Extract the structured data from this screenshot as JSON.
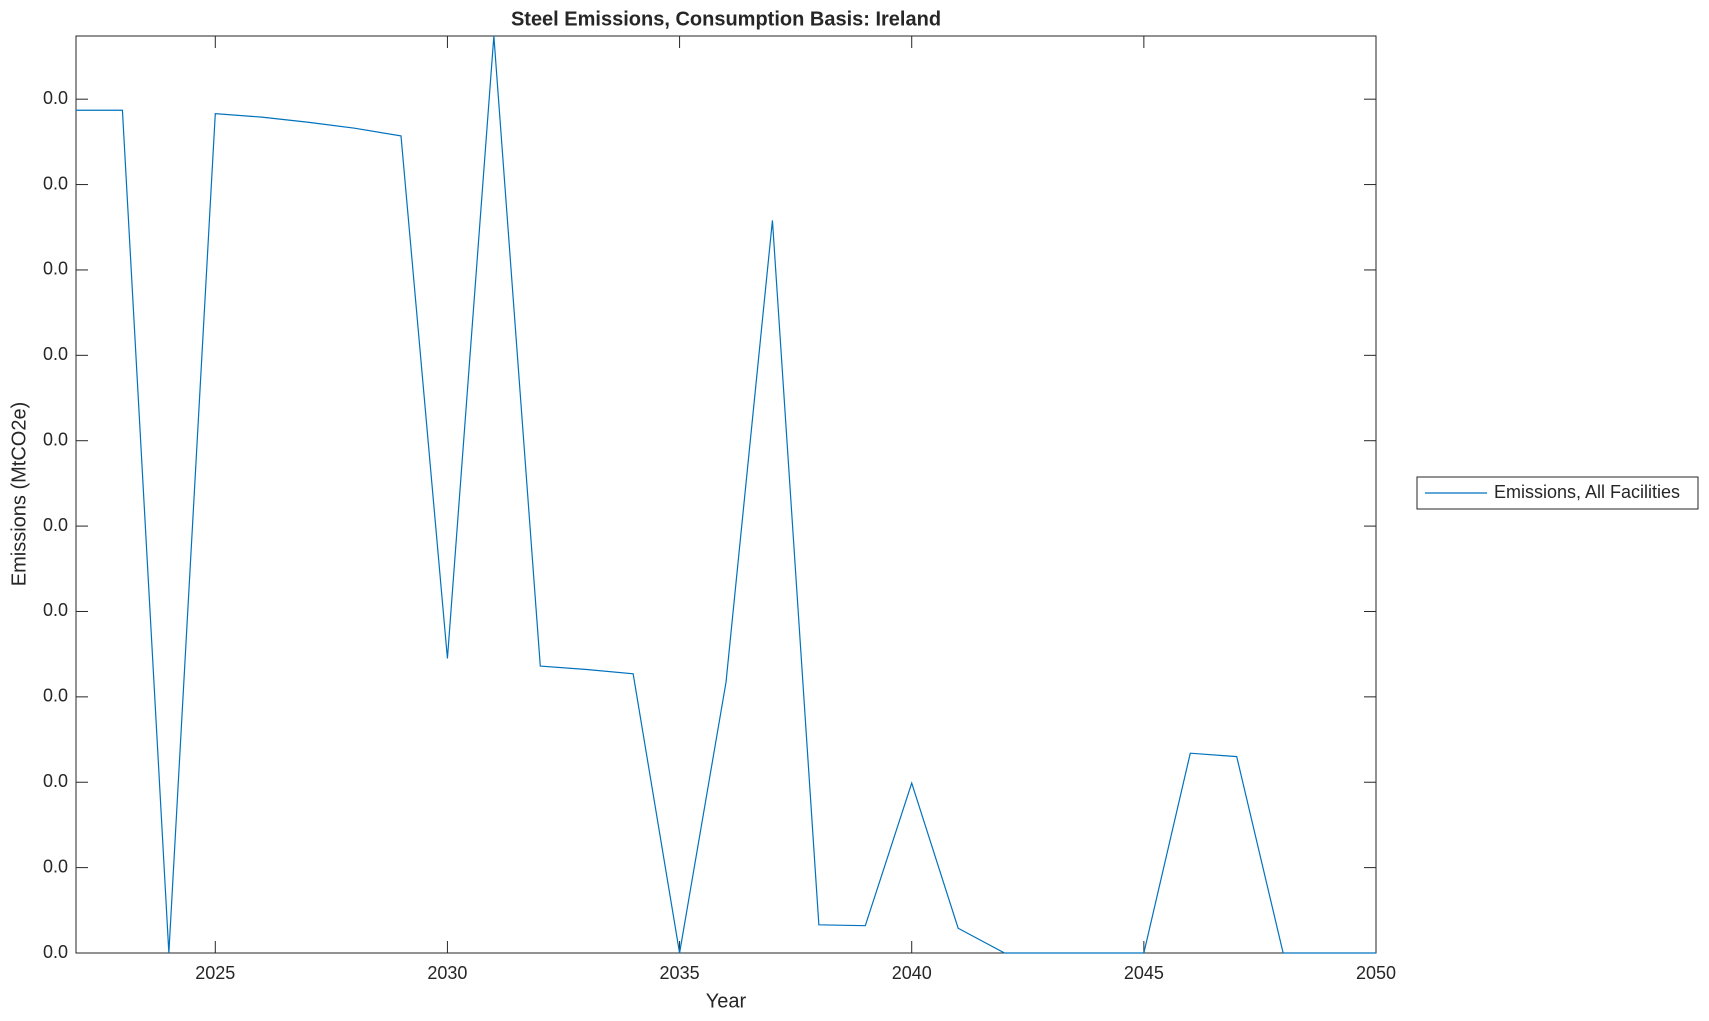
{
  "chart_data": {
    "type": "line",
    "title": "Steel Emissions, Consumption Basis: Ireland",
    "x_label": "Year",
    "y_label": "Emissions (MtCO2e)",
    "x": [
      2022,
      2023,
      2024,
      2025,
      2026,
      2027,
      2028,
      2029,
      2030,
      2031,
      2032,
      2033,
      2034,
      2035,
      2036,
      2037,
      2038,
      2039,
      2040,
      2041,
      2042,
      2043,
      2044,
      2045,
      2046,
      2047,
      2048,
      2049,
      2050
    ],
    "series": [
      {
        "name": "Emissions, All Facilities",
        "color": "#0072bd",
        "values": [
          0.00987,
          0.00987,
          0,
          0.00983,
          0.00979,
          0.00973,
          0.00966,
          0.00957,
          0.00345,
          0.01074,
          0.00336,
          0.00332,
          0.00327,
          0,
          0.00317,
          0.00858,
          0.00033,
          0.00032,
          0.00199,
          0.00029,
          0,
          0,
          0,
          0,
          0.00234,
          0.0023,
          0,
          0,
          0
        ]
      }
    ],
    "xlim": [
      2022,
      2050
    ],
    "xticks": [
      2025,
      2030,
      2035,
      2040,
      2045,
      2050
    ],
    "ylim": [
      0,
      0.01074
    ],
    "yticks": [
      {
        "value": 0,
        "label": "0.0"
      },
      {
        "value": 0.001,
        "label": "0.0"
      },
      {
        "value": 0.002,
        "label": "0.0"
      },
      {
        "value": 0.003,
        "label": "0.0"
      },
      {
        "value": 0.004,
        "label": "0.0"
      },
      {
        "value": 0.005,
        "label": "0.0"
      },
      {
        "value": 0.006,
        "label": "0.0"
      },
      {
        "value": 0.007,
        "label": "0.0"
      },
      {
        "value": 0.008,
        "label": "0.0"
      },
      {
        "value": 0.009,
        "label": "0.0"
      },
      {
        "value": 0.01,
        "label": "0.0"
      }
    ],
    "grid": false,
    "legend": "right"
  }
}
